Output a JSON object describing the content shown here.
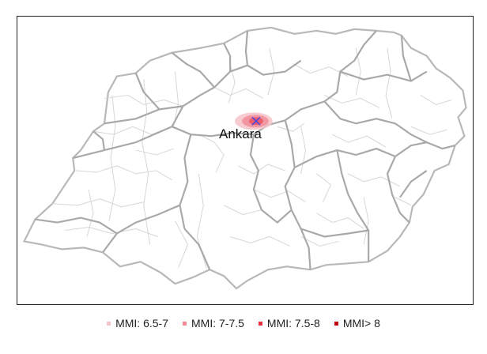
{
  "map": {
    "city_label": "Ankara",
    "epicenter_marker": "x-marker-icon"
  },
  "legend": {
    "items": [
      {
        "label": "MMI: 6.5-7",
        "color": "#f6c3c8"
      },
      {
        "label": "MMI: 7-7.5",
        "color": "#f08a95"
      },
      {
        "label": "MMI: 7.5-8",
        "color": "#e8303f"
      },
      {
        "label": "MMI> 8",
        "color": "#c00010"
      }
    ]
  },
  "colors": {
    "district_border": "#d6d6d6",
    "province_border": "#a9a9a9",
    "outer_border": "#b8b8b8",
    "epicenter": "#4a4ae0"
  }
}
